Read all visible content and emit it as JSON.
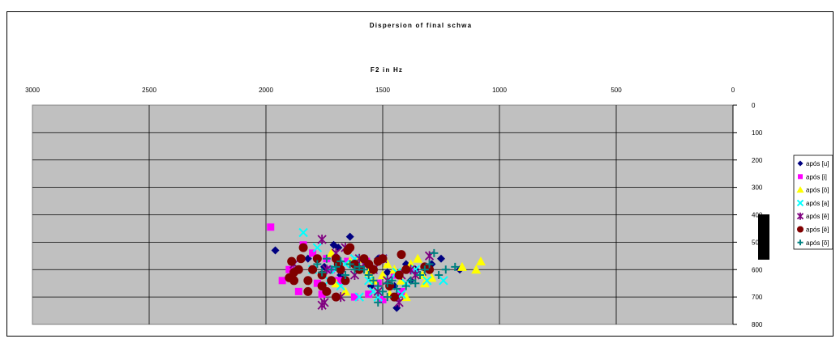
{
  "chart_data": {
    "type": "scatter",
    "title": "Dispersion of final schwa",
    "xlabel": "F2 in Hz",
    "ylabel": "",
    "xlim": [
      3000,
      0
    ],
    "ylim": [
      0,
      800
    ],
    "x_reversed": true,
    "y_reversed": true,
    "x_ticks": [
      "3000",
      "2500",
      "2000",
      "1500",
      "1000",
      "500",
      "0"
    ],
    "y_ticks": [
      "0",
      "100",
      "200",
      "300",
      "400",
      "500",
      "600",
      "700",
      "800"
    ],
    "x_axis_position": "top",
    "y_axis_position": "right",
    "plot_background": "#c0c0c0",
    "grid": true,
    "legend_position": "right",
    "series": [
      {
        "name": "após [u]",
        "marker": "diamond",
        "color": "#000080",
        "points": [
          [
            1960,
            530
          ],
          [
            1710,
            510
          ],
          [
            1690,
            520
          ],
          [
            1640,
            480
          ],
          [
            1520,
            560
          ],
          [
            1480,
            610
          ],
          [
            1440,
            740
          ],
          [
            1400,
            580
          ],
          [
            1360,
            600
          ],
          [
            1330,
            620
          ],
          [
            1290,
            580
          ],
          [
            1250,
            560
          ],
          [
            1170,
            600
          ],
          [
            1600,
            600
          ],
          [
            1750,
            590
          ],
          [
            1820,
            560
          ],
          [
            1550,
            660
          ],
          [
            1450,
            660
          ],
          [
            1380,
            640
          ],
          [
            1680,
            620
          ]
        ]
      },
      {
        "name": "após [i]",
        "marker": "square",
        "color": "#ff00ff",
        "points": [
          [
            1980,
            445
          ],
          [
            1840,
            510
          ],
          [
            1930,
            640
          ],
          [
            1900,
            600
          ],
          [
            1800,
            540
          ],
          [
            1780,
            650
          ],
          [
            1760,
            690
          ],
          [
            1720,
            600
          ],
          [
            1650,
            570
          ],
          [
            1570,
            570
          ],
          [
            1560,
            690
          ],
          [
            1520,
            650
          ],
          [
            1450,
            620
          ],
          [
            1420,
            680
          ],
          [
            1860,
            680
          ],
          [
            1740,
            560
          ],
          [
            1690,
            640
          ],
          [
            1620,
            700
          ],
          [
            1500,
            710
          ],
          [
            1380,
            600
          ]
        ]
      },
      {
        "name": "após [ô]",
        "marker": "triangle",
        "color": "#ffff00",
        "points": [
          [
            1720,
            540
          ],
          [
            1640,
            570
          ],
          [
            1600,
            560
          ],
          [
            1560,
            610
          ],
          [
            1500,
            620
          ],
          [
            1480,
            580
          ],
          [
            1450,
            600
          ],
          [
            1420,
            640
          ],
          [
            1380,
            580
          ],
          [
            1330,
            620
          ],
          [
            1320,
            650
          ],
          [
            1290,
            630
          ],
          [
            1160,
            590
          ],
          [
            1100,
            600
          ],
          [
            1080,
            570
          ],
          [
            1700,
            650
          ],
          [
            1660,
            680
          ],
          [
            1540,
            640
          ],
          [
            1470,
            690
          ],
          [
            1400,
            700
          ],
          [
            1350,
            560
          ]
        ]
      },
      {
        "name": "após [a]",
        "marker": "x",
        "color": "#00ffff",
        "points": [
          [
            1840,
            465
          ],
          [
            1780,
            520
          ],
          [
            1730,
            640
          ],
          [
            1700,
            600
          ],
          [
            1660,
            580
          ],
          [
            1620,
            560
          ],
          [
            1560,
            640
          ],
          [
            1540,
            680
          ],
          [
            1500,
            560
          ],
          [
            1470,
            640
          ],
          [
            1440,
            610
          ],
          [
            1400,
            650
          ],
          [
            1360,
            600
          ],
          [
            1310,
            640
          ],
          [
            1240,
            640
          ],
          [
            1600,
            700
          ],
          [
            1520,
            700
          ],
          [
            1420,
            690
          ],
          [
            1680,
            660
          ],
          [
            1800,
            600
          ]
        ]
      },
      {
        "name": "após [ê]",
        "marker": "asterisk",
        "color": "#800080",
        "points": [
          [
            1760,
            490
          ],
          [
            1740,
            600
          ],
          [
            1700,
            540
          ],
          [
            1660,
            520
          ],
          [
            1620,
            620
          ],
          [
            1600,
            560
          ],
          [
            1580,
            580
          ],
          [
            1540,
            600
          ],
          [
            1500,
            560
          ],
          [
            1480,
            640
          ],
          [
            1440,
            700
          ],
          [
            1430,
            720
          ],
          [
            1420,
            620
          ],
          [
            1380,
            600
          ],
          [
            1360,
            620
          ],
          [
            1300,
            550
          ],
          [
            1750,
            720
          ],
          [
            1760,
            730
          ],
          [
            1680,
            700
          ],
          [
            1520,
            680
          ],
          [
            1880,
            580
          ]
        ]
      },
      {
        "name": "após [ê]",
        "marker": "circle",
        "color": "#800000",
        "points": [
          [
            1890,
            570
          ],
          [
            1900,
            630
          ],
          [
            1880,
            640
          ],
          [
            1860,
            600
          ],
          [
            1850,
            560
          ],
          [
            1840,
            520
          ],
          [
            1820,
            640
          ],
          [
            1820,
            680
          ],
          [
            1800,
            600
          ],
          [
            1780,
            560
          ],
          [
            1760,
            620
          ],
          [
            1740,
            680
          ],
          [
            1720,
            640
          ],
          [
            1700,
            560
          ],
          [
            1690,
            580
          ],
          [
            1680,
            600
          ],
          [
            1660,
            640
          ],
          [
            1650,
            530
          ],
          [
            1640,
            520
          ],
          [
            1600,
            600
          ],
          [
            1580,
            560
          ],
          [
            1560,
            580
          ],
          [
            1540,
            600
          ],
          [
            1520,
            570
          ],
          [
            1500,
            560
          ],
          [
            1470,
            660
          ],
          [
            1450,
            700
          ],
          [
            1430,
            620
          ],
          [
            1420,
            545
          ],
          [
            1400,
            600
          ],
          [
            1320,
            590
          ],
          [
            1300,
            600
          ],
          [
            1700,
            700
          ],
          [
            1760,
            660
          ],
          [
            1620,
            580
          ],
          [
            1880,
            610
          ]
        ]
      },
      {
        "name": "após [õ]",
        "marker": "plus",
        "color": "#008080",
        "points": [
          [
            1780,
            580
          ],
          [
            1760,
            610
          ],
          [
            1740,
            560
          ],
          [
            1720,
            600
          ],
          [
            1700,
            590
          ],
          [
            1680,
            570
          ],
          [
            1660,
            620
          ],
          [
            1640,
            580
          ],
          [
            1620,
            600
          ],
          [
            1600,
            590
          ],
          [
            1580,
            600
          ],
          [
            1560,
            620
          ],
          [
            1540,
            640
          ],
          [
            1520,
            660
          ],
          [
            1500,
            680
          ],
          [
            1480,
            650
          ],
          [
            1460,
            640
          ],
          [
            1440,
            670
          ],
          [
            1400,
            660
          ],
          [
            1380,
            640
          ],
          [
            1360,
            650
          ],
          [
            1340,
            620
          ],
          [
            1320,
            600
          ],
          [
            1300,
            580
          ],
          [
            1280,
            540
          ],
          [
            1260,
            620
          ],
          [
            1230,
            600
          ],
          [
            1190,
            590
          ],
          [
            1480,
            700
          ],
          [
            1520,
            720
          ]
        ]
      }
    ]
  }
}
